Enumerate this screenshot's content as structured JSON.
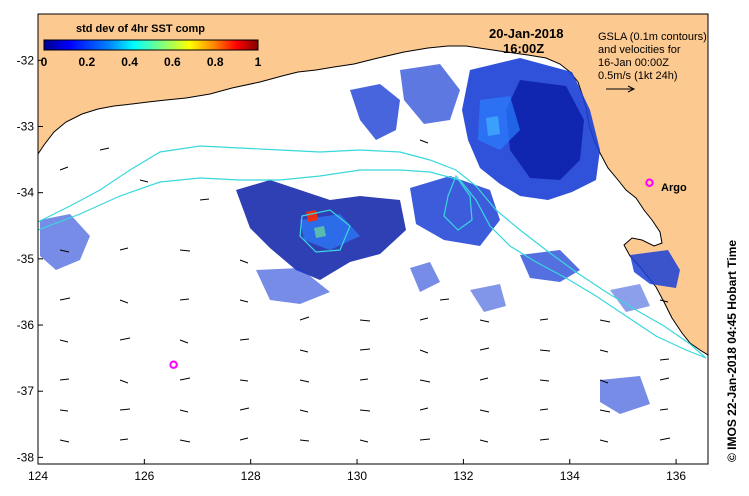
{
  "map": {
    "date": "20-Jan-2018",
    "time": "16:00Z",
    "credit": "© IMOS 22-Jan-2018 04:45 Hobart Time",
    "legend": {
      "title": "std dev of 4hr SST comp",
      "ticks": [
        "0",
        "0.2",
        "0.4",
        "0.6",
        "0.8",
        "1"
      ]
    },
    "notes": {
      "line1": "GSLA (0.1m contours)",
      "line2": "and velocities for",
      "line3": "16-Jan 00:00Z",
      "line4": "0.5m/s (1kt 24h)"
    },
    "argo_label": "Argo",
    "x_ticks": [
      "124",
      "126",
      "128",
      "130",
      "132",
      "134",
      "136"
    ],
    "y_ticks": [
      "-32",
      "-33",
      "-34",
      "-35",
      "-36",
      "-37",
      "-38"
    ],
    "extent": {
      "lon": [
        124,
        136.6
      ],
      "lat": [
        -38.1,
        -31.3
      ]
    },
    "colors": {
      "land": "#fcc990",
      "ocean": "#ffffff",
      "contour": "#38d8dc",
      "argo": "#ff00ff",
      "colormap": [
        "#00008f",
        "#0000ff",
        "#0080ff",
        "#00ffff",
        "#80ff80",
        "#ffff00",
        "#ff8000",
        "#ff0000",
        "#800000"
      ]
    },
    "argo_floats": [
      {
        "lon": 126.55,
        "lat": -36.6
      },
      {
        "lon": 135.5,
        "lat": -33.85
      }
    ]
  }
}
